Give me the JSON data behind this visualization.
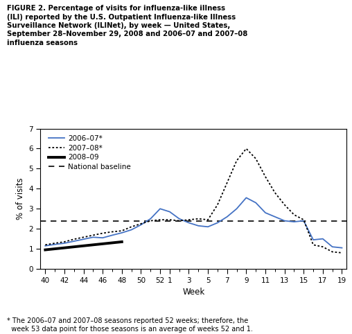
{
  "title_text": "FIGURE 2. Percentage of visits for influenza-like illness\n(ILI) reported by the U.S. Outpatient Influenza-like Illness\nSurveillance Network (ILINet), by week — United States,\nSeptember 28–November 29, 2008 and 2006–07 and 2007–08\ninfluenza seasons",
  "footnote": "* The 2006–07 and 2007–08 seasons reported 52 weeks; therefore, the\n  week 53 data point for those seasons is an average of weeks 52 and 1.",
  "xlabel": "Week",
  "ylabel": "% of visits",
  "ylim": [
    0,
    7
  ],
  "yticks": [
    0,
    1,
    2,
    3,
    4,
    5,
    6,
    7
  ],
  "national_baseline": 2.4,
  "x_tick_labels": [
    "40",
    "42",
    "44",
    "46",
    "48",
    "50",
    "52",
    "1",
    "3",
    "5",
    "7",
    "9",
    "11",
    "13",
    "15",
    "17",
    "19"
  ],
  "season_2006_07": {
    "label": "2006–07*",
    "color": "#4472C4",
    "x_week": [
      40,
      41,
      42,
      43,
      44,
      45,
      46,
      47,
      48,
      49,
      50,
      51,
      52,
      53,
      54,
      55,
      56,
      57,
      58,
      59,
      60,
      61,
      62,
      63,
      64,
      65,
      66,
      67,
      68,
      69,
      70,
      71
    ],
    "y": [
      1.15,
      1.22,
      1.28,
      1.38,
      1.48,
      1.58,
      1.55,
      1.68,
      1.8,
      1.95,
      2.2,
      2.5,
      3.0,
      2.85,
      2.5,
      2.3,
      2.15,
      2.1,
      2.3,
      2.6,
      3.0,
      3.55,
      3.3,
      2.8,
      2.6,
      2.4,
      2.35,
      2.4,
      1.45,
      1.5,
      1.1,
      1.05
    ]
  },
  "season_2007_08": {
    "label": "2007–08*",
    "color": "#000000",
    "x_week": [
      40,
      41,
      42,
      43,
      44,
      45,
      46,
      47,
      48,
      49,
      50,
      51,
      52,
      53,
      54,
      55,
      56,
      57,
      58,
      59,
      60,
      61,
      62,
      63,
      64,
      65,
      66,
      67,
      68,
      69,
      70,
      71
    ],
    "y": [
      1.2,
      1.28,
      1.35,
      1.48,
      1.58,
      1.68,
      1.78,
      1.85,
      1.9,
      2.1,
      2.25,
      2.4,
      2.45,
      2.45,
      2.4,
      2.45,
      2.5,
      2.45,
      3.2,
      4.3,
      5.4,
      6.0,
      5.5,
      4.6,
      3.8,
      3.2,
      2.7,
      2.45,
      1.2,
      1.1,
      0.85,
      0.8
    ]
  },
  "season_2008_09": {
    "label": "2008–09",
    "color": "#000000",
    "x_week": [
      40,
      41,
      42,
      43,
      44,
      45,
      46,
      47,
      48
    ],
    "y": [
      0.95,
      1.0,
      1.05,
      1.1,
      1.15,
      1.2,
      1.25,
      1.3,
      1.35
    ]
  }
}
